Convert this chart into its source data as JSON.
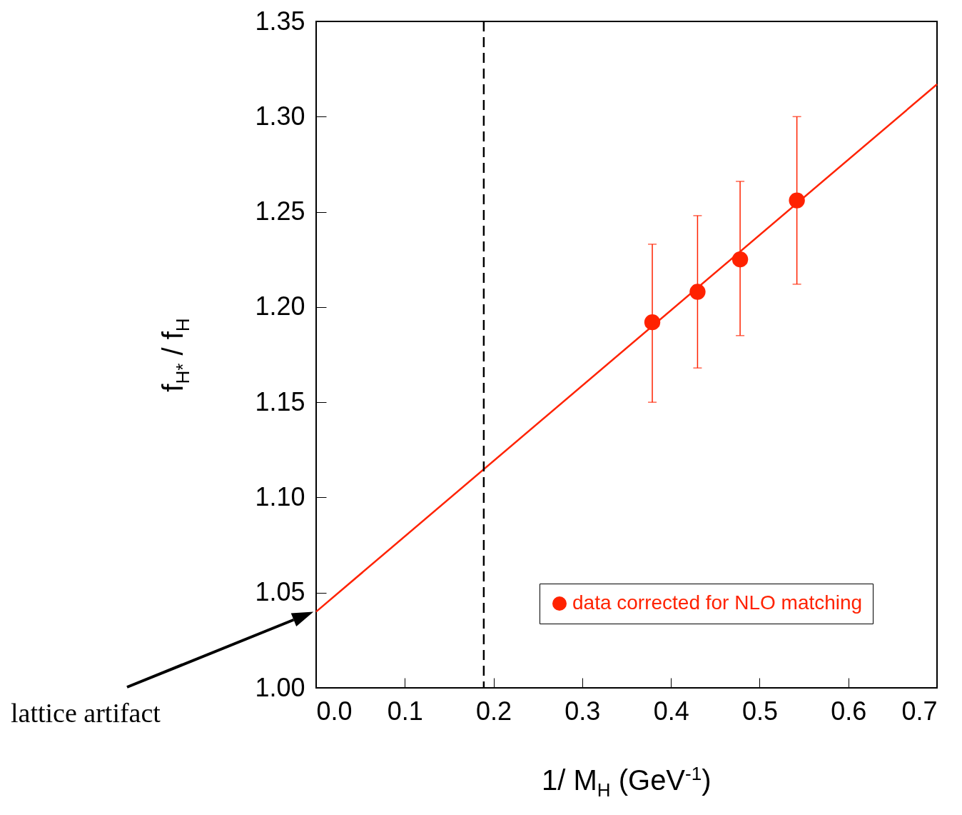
{
  "chart_data": {
    "type": "scatter",
    "xlabel": "1/ M$_{H}$ (GeV$^{-1}$)",
    "ylabel": "f$_{H*}$ / f$_{H}$",
    "xlim": [
      0,
      0.7
    ],
    "ylim": [
      1.0,
      1.35
    ],
    "xticks": [
      {
        "value": 0,
        "label": "0.0"
      },
      {
        "value": 0.1,
        "label": "0.1"
      },
      {
        "value": 0.2,
        "label": "0.2"
      },
      {
        "value": 0.3,
        "label": "0.3"
      },
      {
        "value": 0.4,
        "label": "0.4"
      },
      {
        "value": 0.5,
        "label": "0.5"
      },
      {
        "value": 0.6,
        "label": "0.6"
      },
      {
        "value": 0.7,
        "label": "0.7"
      }
    ],
    "yticks": [
      {
        "value": 1.0,
        "label": "1.00"
      },
      {
        "value": 1.05,
        "label": "1.05"
      },
      {
        "value": 1.1,
        "label": "1.10"
      },
      {
        "value": 1.15,
        "label": "1.15"
      },
      {
        "value": 1.2,
        "label": "1.20"
      },
      {
        "value": 1.25,
        "label": "1.25"
      },
      {
        "value": 1.3,
        "label": "1.30"
      },
      {
        "value": 1.35,
        "label": "1.35"
      }
    ],
    "series": [
      {
        "marker": "circle",
        "name": "data corrected for NLO matching",
        "color": "#ff2200",
        "x": [
          0.379,
          0.43,
          0.478,
          0.542
        ],
        "values": [
          1.192,
          1.208,
          1.225,
          1.256
        ],
        "errors": [
          [
            1.15,
            1.233
          ],
          [
            1.168,
            1.248
          ],
          [
            1.185,
            1.266
          ],
          [
            1.212,
            1.3
          ]
        ]
      },
      {
        "type": "line",
        "color": "#ff2200",
        "x": [
          0,
          0.7
        ],
        "values": [
          1.04,
          1.317
        ]
      }
    ],
    "ref_lines": [
      {
        "axis": "x",
        "value": 0.189,
        "color": "#000000",
        "line_style": "dashed"
      }
    ],
    "annotations": [
      "lattice artifact"
    ],
    "legend": "bottom right",
    "grid": false
  }
}
